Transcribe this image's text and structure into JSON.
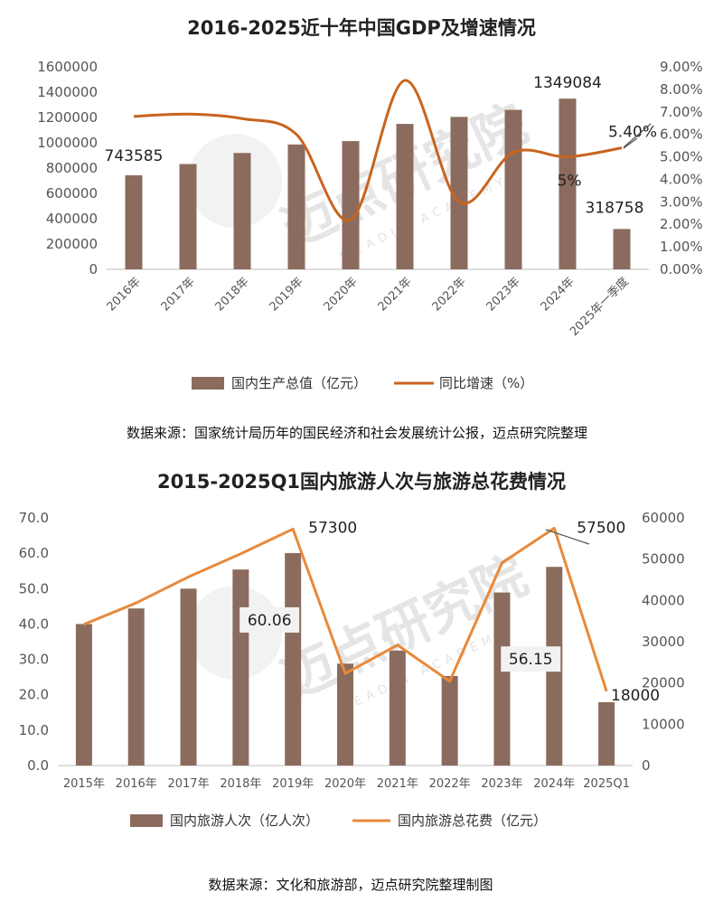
{
  "watermark": {
    "text": "迈点研究院",
    "sub": "MEADIN ACADEMY"
  },
  "chart_data": [
    {
      "type": "bar+line",
      "title": "2016-2025近十年中国GDP及增速情况",
      "categories": [
        "2016年",
        "2017年",
        "2018年",
        "2019年",
        "2020年",
        "2021年",
        "2022年",
        "2023年",
        "2024年",
        "2025年一季度"
      ],
      "series": [
        {
          "name": "国内生产总值（亿元）",
          "type": "bar",
          "axis": "left",
          "color": "#8b6b5e",
          "values": [
            743585,
            832036,
            919281,
            986515,
            1013567,
            1149237,
            1204724,
            1260582,
            1349084,
            318758
          ]
        },
        {
          "name": "同比增速（%）",
          "type": "line",
          "axis": "right",
          "color": "#c8641e",
          "values": [
            6.8,
            6.9,
            6.7,
            6.0,
            2.2,
            8.4,
            3.0,
            5.2,
            5.0,
            5.4
          ]
        }
      ],
      "left_axis": {
        "min": 0,
        "max": 1600000,
        "ticks": [
          "0",
          "200000",
          "400000",
          "600000",
          "800000",
          "1000000",
          "1200000",
          "1400000",
          "1600000"
        ]
      },
      "right_axis": {
        "min": 0,
        "max": 9,
        "ticks": [
          "0.00%",
          "1.00%",
          "2.00%",
          "3.00%",
          "4.00%",
          "5.00%",
          "6.00%",
          "7.00%",
          "8.00%",
          "9.00%"
        ]
      },
      "data_labels": [
        {
          "series": 0,
          "index": 0,
          "text": "743585"
        },
        {
          "series": 0,
          "index": 8,
          "text": "1349084"
        },
        {
          "series": 0,
          "index": 9,
          "text": "318758"
        },
        {
          "series": 1,
          "index": 8,
          "text": "5%"
        },
        {
          "series": 1,
          "index": 9,
          "text": "5.40%"
        }
      ],
      "legend_position": "bottom",
      "source": "数据来源：国家统计局历年的国民经济和社会发展统计公报，迈点研究院整理"
    },
    {
      "type": "bar+line",
      "title": "2015-2025Q1国内旅游人次与旅游总花费情况",
      "categories": [
        "2015年",
        "2016年",
        "2017年",
        "2018年",
        "2019年",
        "2020年",
        "2021年",
        "2022年",
        "2023年",
        "2024年",
        "2025Q1"
      ],
      "series": [
        {
          "name": "国内旅游人次（亿人次）",
          "type": "bar",
          "axis": "left",
          "color": "#8b6b5e",
          "values": [
            40.0,
            44.4,
            50.0,
            55.4,
            60.06,
            28.8,
            32.5,
            25.3,
            48.9,
            56.15,
            17.9
          ]
        },
        {
          "name": "国内旅游总花费（亿元）",
          "type": "line",
          "axis": "right",
          "color": "#e9893a",
          "values": [
            34200,
            39400,
            45700,
            51300,
            57300,
            22300,
            29200,
            20400,
            49100,
            57500,
            18000
          ]
        }
      ],
      "left_axis": {
        "min": 0,
        "max": 70,
        "ticks": [
          "0.0",
          "10.0",
          "20.0",
          "30.0",
          "40.0",
          "50.0",
          "60.0",
          "70.0"
        ]
      },
      "right_axis": {
        "min": 0,
        "max": 60000,
        "ticks": [
          "0",
          "10000",
          "20000",
          "30000",
          "40000",
          "50000",
          "60000"
        ]
      },
      "data_labels": [
        {
          "series": 0,
          "index": 4,
          "text": "60.06"
        },
        {
          "series": 0,
          "index": 9,
          "text": "56.15"
        },
        {
          "series": 1,
          "index": 4,
          "text": "57300"
        },
        {
          "series": 1,
          "index": 9,
          "text": "57500"
        },
        {
          "series": 1,
          "index": 10,
          "text": "18000"
        }
      ],
      "legend_position": "bottom",
      "source": "数据来源：文化和旅游部，迈点研究院整理制图"
    }
  ]
}
